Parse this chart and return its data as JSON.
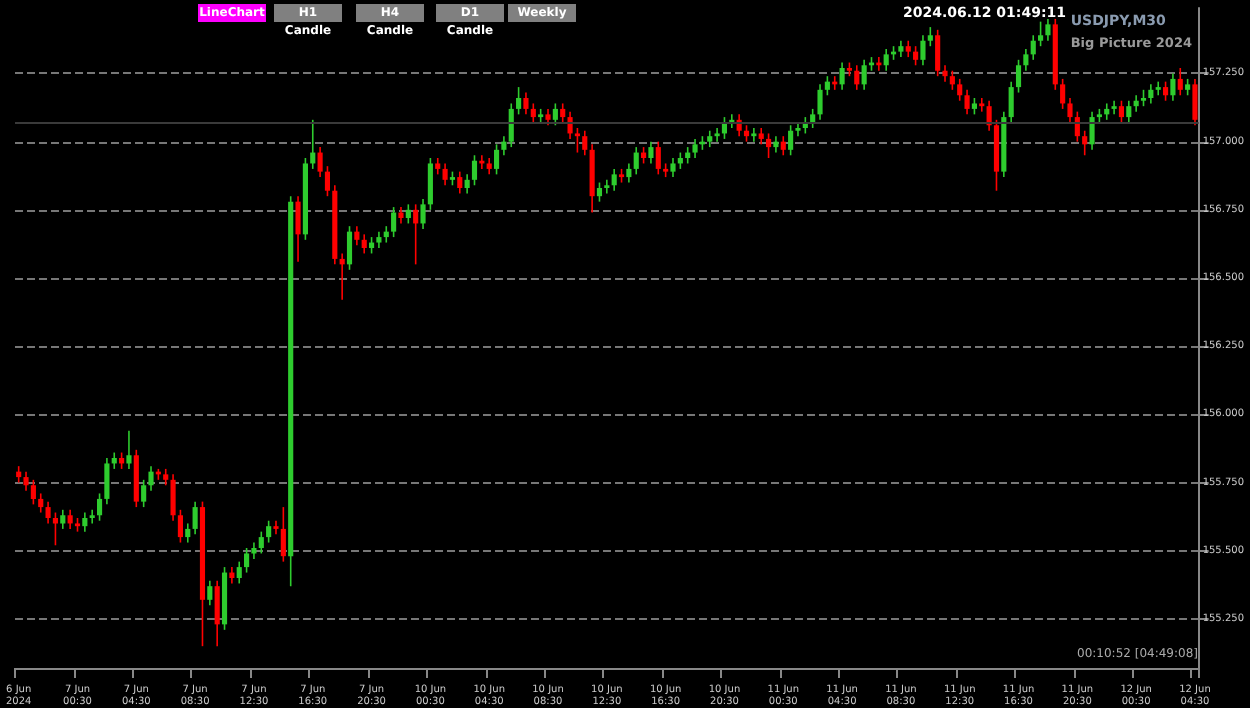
{
  "chart_data": {
    "type": "candlestick",
    "title": "USDJPY,M30",
    "subtitle": "Big Picture 2024",
    "annotations": [
      "2024.06.12 01:49:11",
      "00:10:52 [04:49:08]",
      "LineChart",
      "H1 Candle",
      "H4 Candle",
      "D1 Candle",
      "Weekly"
    ],
    "categories": [
      "6 Jun 2024",
      null,
      null,
      null,
      null,
      null,
      null,
      null,
      "7 Jun 00:30",
      null,
      null,
      null,
      null,
      null,
      null,
      null,
      "7 Jun 04:30",
      null,
      null,
      null,
      null,
      null,
      null,
      null,
      "7 Jun 08:30",
      null,
      null,
      null,
      null,
      null,
      null,
      null,
      "7 Jun 12:30",
      null,
      null,
      null,
      null,
      null,
      null,
      null,
      "7 Jun 16:30",
      null,
      null,
      null,
      null,
      null,
      null,
      null,
      "7 Jun 20:30",
      null,
      null,
      null,
      null,
      null,
      null,
      null,
      "10 Jun 00:30",
      null,
      null,
      null,
      null,
      null,
      null,
      null,
      "10 Jun 04:30",
      null,
      null,
      null,
      null,
      null,
      null,
      null,
      "10 Jun 08:30",
      null,
      null,
      null,
      null,
      null,
      null,
      null,
      "10 Jun 12:30",
      null,
      null,
      null,
      null,
      null,
      null,
      null,
      "10 Jun 16:30",
      null,
      null,
      null,
      null,
      null,
      null,
      null,
      "10 Jun 20:30",
      null,
      null,
      null,
      null,
      null,
      null,
      null,
      "11 Jun 00:30",
      null,
      null,
      null,
      null,
      null,
      null,
      null,
      "11 Jun 04:30",
      null,
      null,
      null,
      null,
      null,
      null,
      null,
      "11 Jun 08:30",
      null,
      null,
      null,
      null,
      null,
      null,
      null,
      "11 Jun 12:30",
      null,
      null,
      null,
      null,
      null,
      null,
      null,
      "11 Jun 16:30",
      null,
      null,
      null,
      null,
      null,
      null,
      null,
      "11 Jun 20:30",
      null,
      null,
      null,
      null,
      null,
      null,
      null,
      "12 Jun 00:30",
      null,
      null,
      null,
      null,
      null,
      null,
      null,
      "12 Jun 04:30"
    ],
    "colors": [
      "#ff0000",
      "#ff0000",
      "#ff0000",
      "#ff0000",
      "#ff0000",
      "#ff0000",
      "#2ecc2e",
      "#ff0000",
      "#ff0000",
      "#2ecc2e",
      "#2ecc2e",
      "#2ecc2e",
      "#2ecc2e",
      "#2ecc2e",
      "#ff0000",
      "#2ecc2e",
      "#ff0000",
      "#2ecc2e",
      "#2ecc2e",
      "#ff0000",
      "#ff0000",
      "#ff0000",
      "#ff0000",
      "#2ecc2e",
      "#2ecc2e",
      "#ff0000",
      "#2ecc2e",
      "#ff0000",
      "#2ecc2e",
      "#ff0000",
      "#2ecc2e",
      "#2ecc2e",
      "#2ecc2e",
      "#2ecc2e",
      "#2ecc2e",
      "#ff0000",
      "#ff0000",
      "#2ecc2e",
      "#ff0000",
      "#2ecc2e",
      "#2ecc2e",
      "#ff0000",
      "#ff0000",
      "#ff0000",
      "#ff0000",
      "#2ecc2e",
      "#ff0000",
      "#ff0000",
      "#2ecc2e",
      "#2ecc2e",
      "#2ecc2e",
      "#2ecc2e",
      "#ff0000",
      "#2ecc2e",
      "#ff0000",
      "#2ecc2e",
      "#2ecc2e",
      "#ff0000",
      "#ff0000",
      "#2ecc2e",
      "#ff0000",
      "#2ecc2e",
      "#2ecc2e",
      "#ff0000",
      "#ff0000",
      "#2ecc2e",
      "#2ecc2e",
      "#2ecc2e",
      "#2ecc2e",
      "#ff0000",
      "#ff0000",
      "#2ecc2e",
      "#ff0000",
      "#2ecc2e",
      "#ff0000",
      "#ff0000",
      "#ff0000",
      "#ff0000",
      "#ff0000",
      "#2ecc2e",
      "#2ecc2e",
      "#2ecc2e",
      "#ff0000",
      "#2ecc2e",
      "#2ecc2e",
      "#ff0000",
      "#2ecc2e",
      "#ff0000",
      "#ff0000",
      "#2ecc2e",
      "#2ecc2e",
      "#2ecc2e",
      "#2ecc2e",
      "#2ecc2e",
      "#2ecc2e",
      "#2ecc2e",
      "#2ecc2e",
      "#2ecc2e",
      "#ff0000",
      "#ff0000",
      "#2ecc2e",
      "#ff0000",
      "#ff0000",
      "#2ecc2e",
      "#ff0000",
      "#2ecc2e",
      "#2ecc2e",
      "#2ecc2e",
      "#2ecc2e",
      "#2ecc2e",
      "#2ecc2e",
      "#ff0000",
      "#2ecc2e",
      "#ff0000",
      "#ff0000",
      "#2ecc2e",
      "#2ecc2e",
      "#ff0000",
      "#2ecc2e",
      "#2ecc2e",
      "#2ecc2e",
      "#ff0000",
      "#ff0000",
      "#2ecc2e",
      "#2ecc2e",
      "#ff0000",
      "#ff0000",
      "#ff0000",
      "#ff0000",
      "#ff0000",
      "#2ecc2e",
      "#ff0000",
      "#ff0000",
      "#ff0000",
      "#2ecc2e",
      "#2ecc2e",
      "#2ecc2e",
      "#2ecc2e",
      "#2ecc2e",
      "#2ecc2e",
      "#2ecc2e",
      "#ff0000",
      "#ff0000",
      "#ff0000",
      "#ff0000",
      "#ff0000",
      "#2ecc2e",
      "#2ecc2e",
      "#2ecc2e",
      "#2ecc2e",
      "#ff0000",
      "#2ecc2e",
      "#2ecc2e",
      "#2ecc2e",
      "#2ecc2e",
      "#2ecc2e",
      "#ff0000",
      "#2ecc2e",
      "#ff0000",
      "#2ecc2e",
      "#ff0000"
    ],
    "ohlc": [
      [
        155.79,
        155.81,
        155.75,
        155.77
      ],
      [
        155.77,
        155.79,
        155.72,
        155.74
      ],
      [
        155.74,
        155.76,
        155.67,
        155.69
      ],
      [
        155.69,
        155.71,
        155.64,
        155.66
      ],
      [
        155.66,
        155.68,
        155.6,
        155.62
      ],
      [
        155.62,
        155.64,
        155.52,
        155.6
      ],
      [
        155.6,
        155.65,
        155.58,
        155.63
      ],
      [
        155.63,
        155.65,
        155.58,
        155.6
      ],
      [
        155.6,
        155.62,
        155.57,
        155.59
      ],
      [
        155.59,
        155.64,
        155.57,
        155.62
      ],
      [
        155.62,
        155.65,
        155.6,
        155.63
      ],
      [
        155.63,
        155.71,
        155.61,
        155.69
      ],
      [
        155.69,
        155.84,
        155.67,
        155.82
      ],
      [
        155.82,
        155.86,
        155.8,
        155.84
      ],
      [
        155.84,
        155.86,
        155.8,
        155.82
      ],
      [
        155.82,
        155.94,
        155.8,
        155.85
      ],
      [
        155.85,
        155.87,
        155.66,
        155.68
      ],
      [
        155.68,
        155.76,
        155.66,
        155.74
      ],
      [
        155.74,
        155.81,
        155.72,
        155.79
      ],
      [
        155.79,
        155.8,
        155.76,
        155.78
      ],
      [
        155.78,
        155.8,
        155.74,
        155.76
      ],
      [
        155.76,
        155.78,
        155.61,
        155.63
      ],
      [
        155.63,
        155.65,
        155.53,
        155.55
      ],
      [
        155.55,
        155.6,
        155.53,
        155.58
      ],
      [
        155.58,
        155.68,
        155.56,
        155.66
      ],
      [
        155.66,
        155.68,
        155.15,
        155.32
      ],
      [
        155.32,
        155.39,
        155.3,
        155.37
      ],
      [
        155.37,
        155.39,
        155.15,
        155.23
      ],
      [
        155.23,
        155.44,
        155.21,
        155.42
      ],
      [
        155.42,
        155.44,
        155.38,
        155.4
      ],
      [
        155.4,
        155.46,
        155.38,
        155.44
      ],
      [
        155.44,
        155.51,
        155.42,
        155.49
      ],
      [
        155.49,
        155.53,
        155.47,
        155.51
      ],
      [
        155.51,
        155.57,
        155.49,
        155.55
      ],
      [
        155.55,
        155.61,
        155.53,
        155.59
      ],
      [
        155.59,
        155.61,
        155.56,
        155.58
      ],
      [
        155.58,
        155.66,
        155.46,
        155.48
      ],
      [
        155.48,
        156.8,
        155.37,
        156.78
      ],
      [
        156.78,
        156.8,
        156.56,
        156.66
      ],
      [
        156.66,
        156.94,
        156.64,
        156.92
      ],
      [
        156.92,
        157.08,
        156.9,
        156.96
      ],
      [
        156.96,
        156.98,
        156.87,
        156.89
      ],
      [
        156.89,
        156.91,
        156.8,
        156.82
      ],
      [
        156.82,
        156.84,
        156.55,
        156.57
      ],
      [
        156.57,
        156.59,
        156.42,
        156.55
      ],
      [
        156.55,
        156.69,
        156.53,
        156.67
      ],
      [
        156.67,
        156.69,
        156.62,
        156.64
      ],
      [
        156.64,
        156.66,
        156.59,
        156.61
      ],
      [
        156.61,
        156.65,
        156.59,
        156.63
      ],
      [
        156.63,
        156.67,
        156.61,
        156.65
      ],
      [
        156.65,
        156.69,
        156.63,
        156.67
      ],
      [
        156.67,
        156.76,
        156.65,
        156.74
      ],
      [
        156.74,
        156.76,
        156.7,
        156.72
      ],
      [
        156.72,
        156.77,
        156.7,
        156.75
      ],
      [
        156.75,
        156.77,
        156.55,
        156.7
      ],
      [
        156.7,
        156.79,
        156.68,
        156.77
      ],
      [
        156.77,
        156.94,
        156.75,
        156.92
      ],
      [
        156.92,
        156.94,
        156.88,
        156.9
      ],
      [
        156.9,
        156.92,
        156.84,
        156.86
      ],
      [
        156.86,
        156.89,
        156.84,
        156.87
      ],
      [
        156.87,
        156.89,
        156.81,
        156.83
      ],
      [
        156.83,
        156.88,
        156.81,
        156.86
      ],
      [
        156.86,
        156.95,
        156.84,
        156.93
      ],
      [
        156.93,
        156.95,
        156.9,
        156.92
      ],
      [
        156.92,
        156.94,
        156.88,
        156.9
      ],
      [
        156.9,
        156.99,
        156.88,
        156.97
      ],
      [
        156.97,
        157.02,
        156.95,
        157.0
      ],
      [
        157.0,
        157.14,
        156.98,
        157.12
      ],
      [
        157.12,
        157.2,
        157.1,
        157.16
      ],
      [
        157.16,
        157.18,
        157.1,
        157.12
      ],
      [
        157.12,
        157.14,
        157.07,
        157.09
      ],
      [
        157.09,
        157.12,
        157.07,
        157.1
      ],
      [
        157.1,
        157.12,
        157.06,
        157.08
      ],
      [
        157.08,
        157.14,
        157.06,
        157.12
      ],
      [
        157.12,
        157.14,
        157.07,
        157.09
      ],
      [
        157.09,
        157.11,
        157.01,
        157.03
      ],
      [
        157.03,
        157.05,
        156.96,
        157.02
      ],
      [
        157.02,
        157.04,
        156.95,
        156.97
      ],
      [
        156.97,
        156.99,
        156.74,
        156.8
      ],
      [
        156.8,
        156.85,
        156.78,
        156.83
      ],
      [
        156.83,
        156.86,
        156.81,
        156.84
      ],
      [
        156.84,
        156.9,
        156.82,
        156.88
      ],
      [
        156.88,
        156.9,
        156.85,
        156.87
      ],
      [
        156.87,
        156.92,
        156.85,
        156.9
      ],
      [
        156.9,
        156.98,
        156.88,
        156.96
      ],
      [
        156.96,
        156.98,
        156.92,
        156.94
      ],
      [
        156.94,
        157.0,
        156.92,
        156.98
      ],
      [
        156.98,
        157.0,
        156.88,
        156.9
      ],
      [
        156.9,
        156.92,
        156.87,
        156.89
      ],
      [
        156.89,
        156.94,
        156.87,
        156.92
      ],
      [
        156.92,
        156.96,
        156.9,
        156.94
      ],
      [
        156.94,
        156.98,
        156.92,
        156.96
      ],
      [
        156.96,
        157.01,
        156.94,
        156.99
      ],
      [
        156.99,
        157.02,
        156.97,
        157.0
      ],
      [
        157.0,
        157.04,
        156.98,
        157.02
      ],
      [
        157.02,
        157.05,
        157.0,
        157.03
      ],
      [
        157.03,
        157.09,
        157.01,
        157.07
      ],
      [
        157.07,
        157.1,
        157.05,
        157.08
      ],
      [
        157.08,
        157.1,
        157.02,
        157.04
      ],
      [
        157.04,
        157.06,
        157.0,
        157.02
      ],
      [
        157.02,
        157.05,
        157.0,
        157.03
      ],
      [
        157.03,
        157.05,
        156.99,
        157.01
      ],
      [
        157.01,
        157.03,
        156.94,
        156.98
      ],
      [
        156.98,
        157.02,
        156.96,
        157.0
      ],
      [
        157.0,
        157.02,
        156.95,
        156.97
      ],
      [
        156.97,
        157.06,
        156.95,
        157.04
      ],
      [
        157.04,
        157.07,
        157.02,
        157.05
      ],
      [
        157.05,
        157.09,
        157.03,
        157.07
      ],
      [
        157.07,
        157.12,
        157.05,
        157.1
      ],
      [
        157.1,
        157.21,
        157.08,
        157.19
      ],
      [
        157.19,
        157.24,
        157.17,
        157.22
      ],
      [
        157.22,
        157.24,
        157.19,
        157.21
      ],
      [
        157.21,
        157.29,
        157.19,
        157.27
      ],
      [
        157.27,
        157.29,
        157.24,
        157.26
      ],
      [
        157.26,
        157.28,
        157.19,
        157.21
      ],
      [
        157.21,
        157.3,
        157.19,
        157.28
      ],
      [
        157.28,
        157.31,
        157.26,
        157.29
      ],
      [
        157.29,
        157.31,
        157.26,
        157.28
      ],
      [
        157.28,
        157.34,
        157.26,
        157.32
      ],
      [
        157.32,
        157.35,
        157.3,
        157.33
      ],
      [
        157.33,
        157.37,
        157.31,
        157.35
      ],
      [
        157.35,
        157.37,
        157.31,
        157.33
      ],
      [
        157.33,
        157.35,
        157.28,
        157.3
      ],
      [
        157.3,
        157.39,
        157.28,
        157.37
      ],
      [
        157.37,
        157.42,
        157.35,
        157.39
      ],
      [
        157.39,
        157.41,
        157.24,
        157.26
      ],
      [
        157.26,
        157.28,
        157.22,
        157.24
      ],
      [
        157.24,
        157.26,
        157.19,
        157.21
      ],
      [
        157.21,
        157.23,
        157.15,
        157.17
      ],
      [
        157.17,
        157.19,
        157.1,
        157.12
      ],
      [
        157.12,
        157.16,
        157.1,
        157.14
      ],
      [
        157.14,
        157.16,
        157.11,
        157.13
      ],
      [
        157.13,
        157.15,
        157.04,
        157.06
      ],
      [
        157.06,
        157.08,
        156.82,
        156.89
      ],
      [
        156.89,
        157.11,
        156.87,
        157.09
      ],
      [
        157.09,
        157.22,
        157.07,
        157.2
      ],
      [
        157.2,
        157.3,
        157.18,
        157.28
      ],
      [
        157.28,
        157.34,
        157.26,
        157.32
      ],
      [
        157.32,
        157.39,
        157.3,
        157.37
      ],
      [
        157.37,
        157.44,
        157.35,
        157.39
      ],
      [
        157.39,
        157.45,
        157.37,
        157.43
      ],
      [
        157.43,
        157.45,
        157.19,
        157.21
      ],
      [
        157.21,
        157.23,
        157.12,
        157.14
      ],
      [
        157.14,
        157.16,
        157.07,
        157.09
      ],
      [
        157.09,
        157.11,
        157.0,
        157.02
      ],
      [
        157.02,
        157.04,
        156.95,
        156.99
      ],
      [
        156.99,
        157.11,
        156.97,
        157.09
      ],
      [
        157.09,
        157.12,
        157.07,
        157.1
      ],
      [
        157.1,
        157.14,
        157.08,
        157.12
      ],
      [
        157.12,
        157.15,
        157.1,
        157.13
      ],
      [
        157.13,
        157.15,
        157.07,
        157.09
      ],
      [
        157.09,
        157.15,
        157.07,
        157.13
      ],
      [
        157.13,
        157.17,
        157.11,
        157.15
      ],
      [
        157.15,
        157.19,
        157.13,
        157.16
      ],
      [
        157.16,
        157.21,
        157.14,
        157.19
      ],
      [
        157.19,
        157.22,
        157.17,
        157.2
      ],
      [
        157.2,
        157.22,
        157.15,
        157.17
      ],
      [
        157.17,
        157.25,
        157.15,
        157.23
      ],
      [
        157.23,
        157.27,
        157.17,
        157.19
      ],
      [
        157.19,
        157.23,
        157.17,
        157.21
      ],
      [
        157.21,
        157.23,
        157.06,
        157.08
      ]
    ],
    "ylim": [
      155.07,
      157.49
    ],
    "yticks": [
      {
        "value": 155.25,
        "label": "155.250"
      },
      {
        "value": 155.5,
        "label": "155.500"
      },
      {
        "value": 155.75,
        "label": "155.750"
      },
      {
        "value": 156,
        "label": "156.000"
      },
      {
        "value": 156.25,
        "label": "156.250"
      },
      {
        "value": 156.5,
        "label": "156.500"
      },
      {
        "value": 156.75,
        "label": "156.750"
      },
      {
        "value": 157,
        "label": "157.000"
      },
      {
        "value": 157.25,
        "label": "157.250"
      }
    ],
    "grid": "y",
    "line_style": "dashed",
    "ref_lines": [
      {
        "axis": "y",
        "value": 157.07,
        "color": "#3a3a3a"
      }
    ]
  }
}
